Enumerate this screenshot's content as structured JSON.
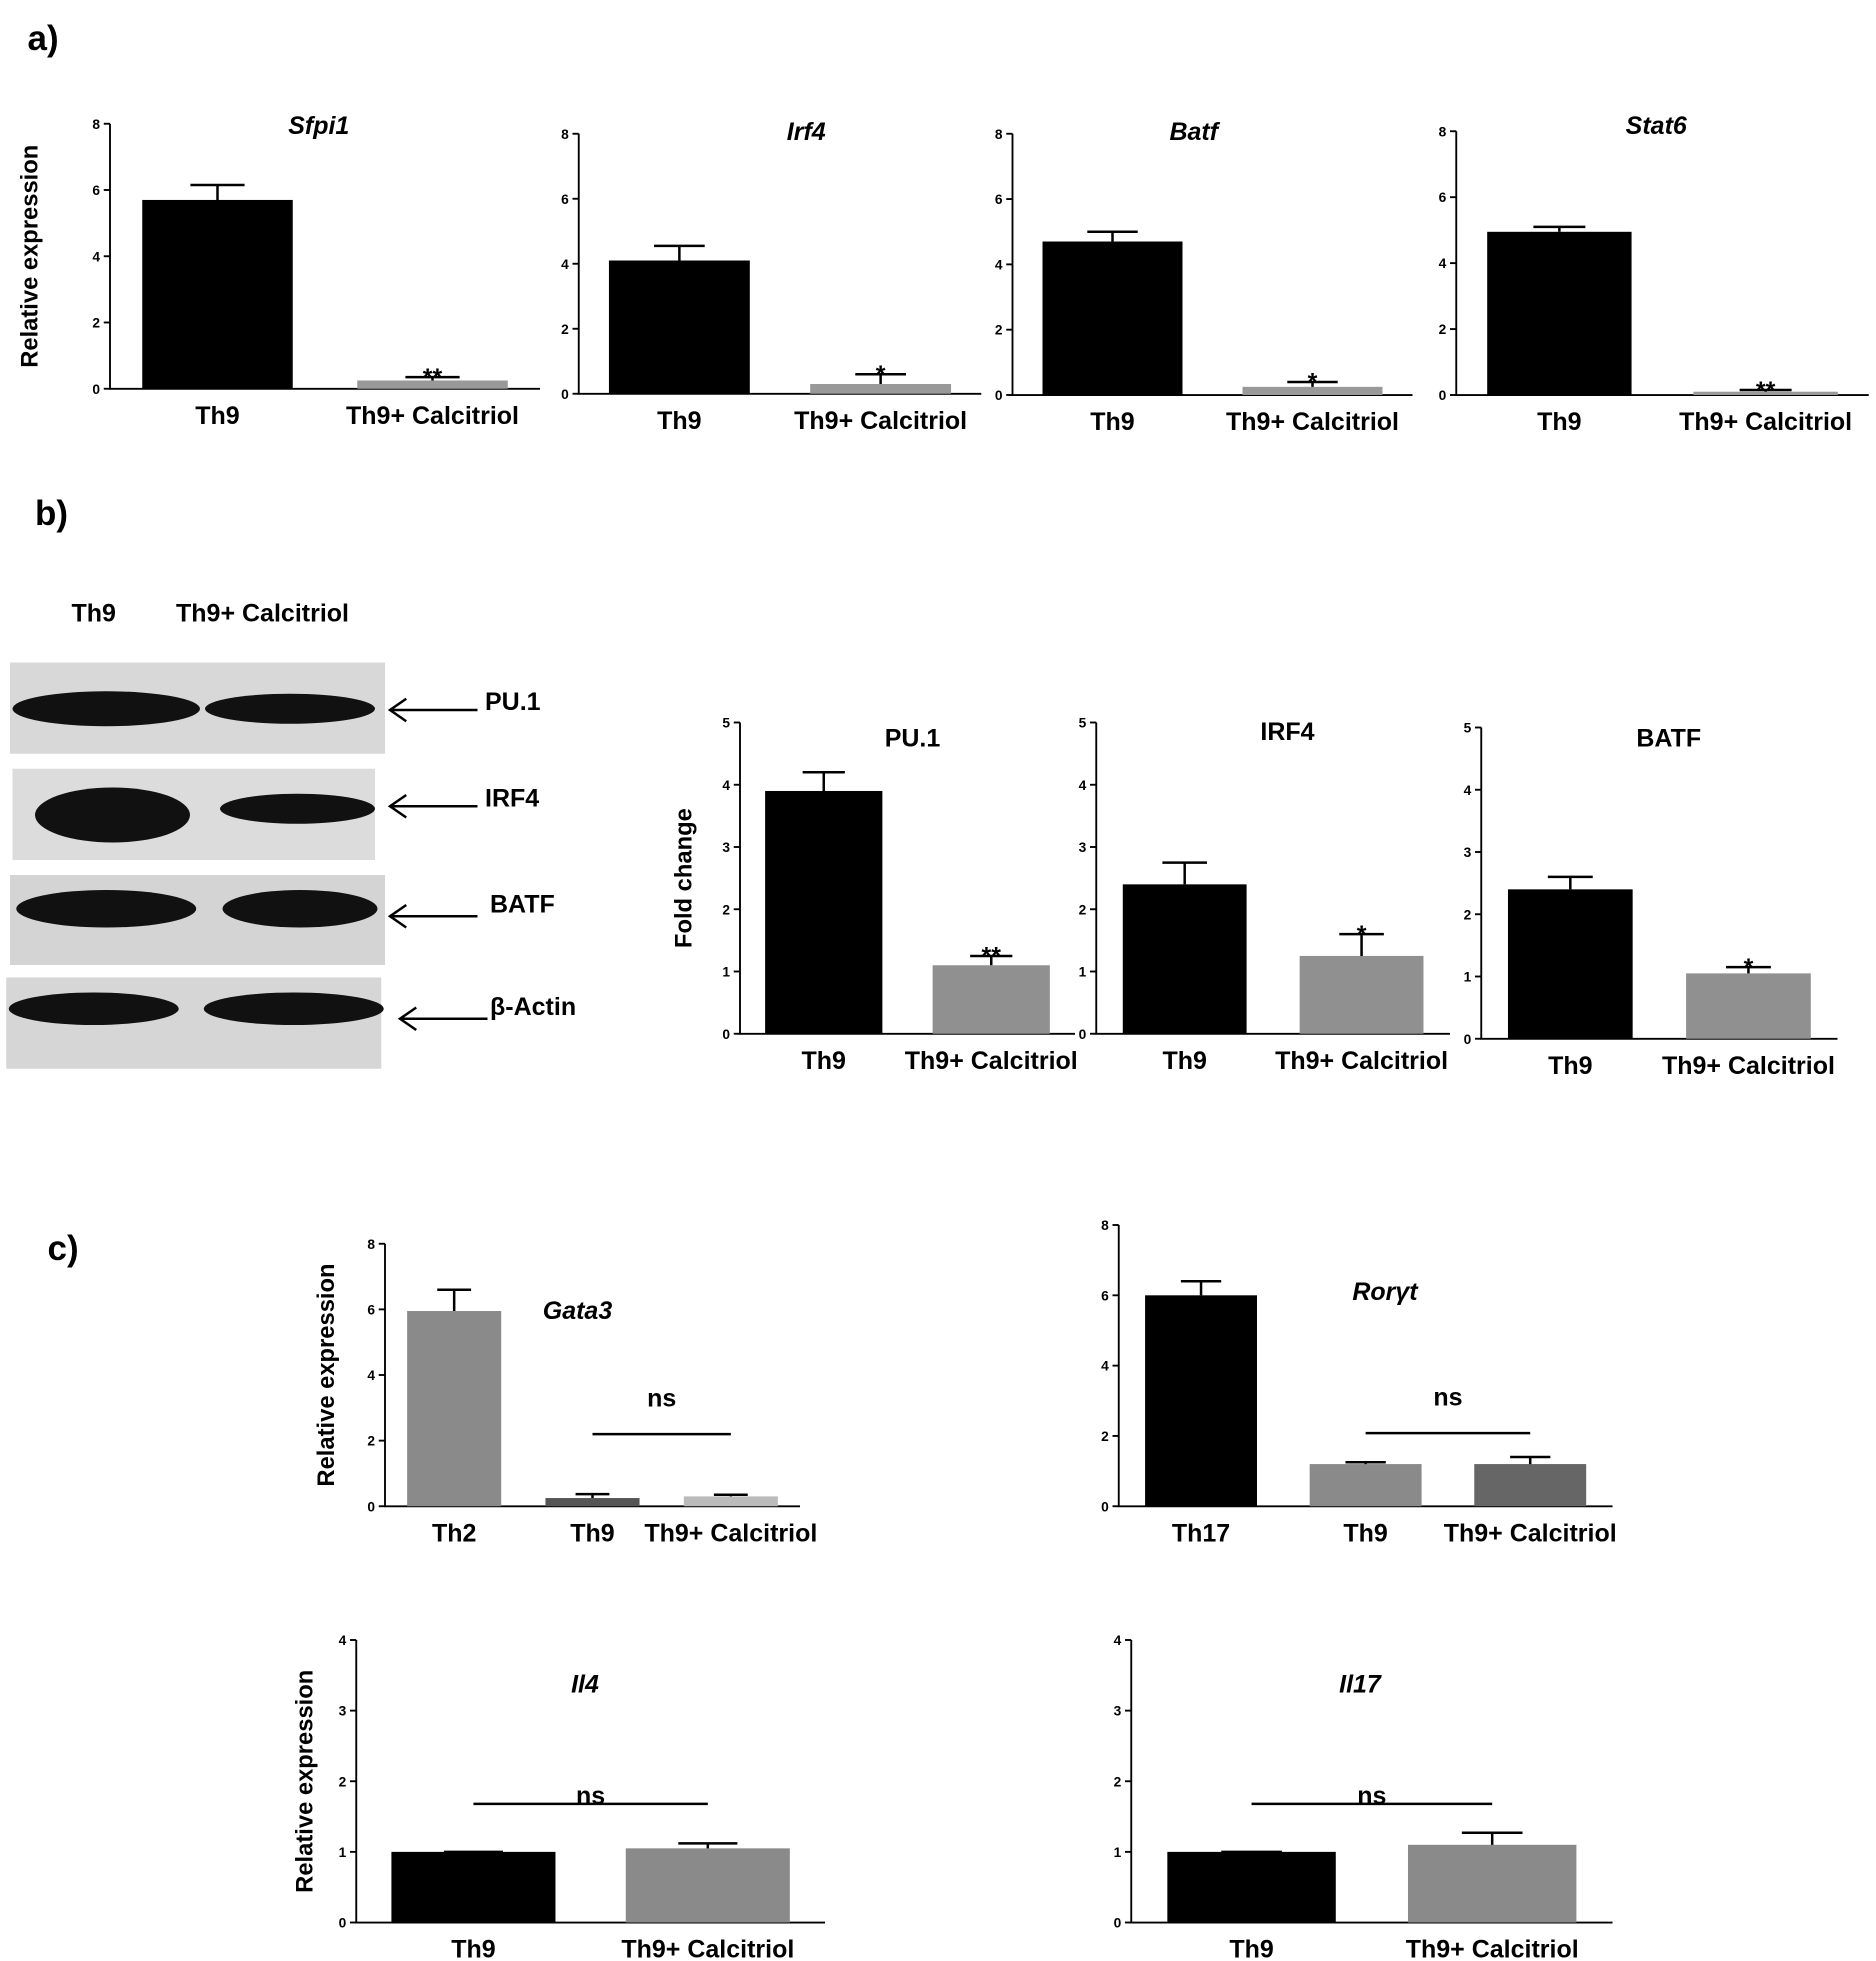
{
  "panel_labels": [
    "a)",
    "b)",
    "c)"
  ],
  "blot": {
    "lanes": [
      "Th9",
      "Th9+ Calcitriol"
    ],
    "proteins": [
      "PU.1",
      "IRF4",
      "BATF",
      "β-Actin"
    ]
  },
  "chart_data": [
    {
      "type": "bar",
      "title": "Sfpi1",
      "ylabel": "Relative expression",
      "categories": [
        "Th9",
        "Th9+ Calcitriol"
      ],
      "values": [
        5.7,
        0.25
      ],
      "errors": [
        0.45,
        0.1
      ],
      "colors": [
        "#000000",
        "#999999"
      ],
      "annotation": "**",
      "ylim": [
        0,
        8
      ],
      "yticks": [
        0,
        2,
        4,
        6,
        8
      ]
    },
    {
      "type": "bar",
      "title": "Irf4",
      "categories": [
        "Th9",
        "Th9+ Calcitriol"
      ],
      "values": [
        4.1,
        0.3
      ],
      "errors": [
        0.45,
        0.3
      ],
      "colors": [
        "#000000",
        "#999999"
      ],
      "annotation": "*",
      "ylim": [
        0,
        8
      ],
      "yticks": [
        0,
        2,
        4,
        6,
        8
      ]
    },
    {
      "type": "bar",
      "title": "Batf",
      "categories": [
        "Th9",
        "Th9+ Calcitriol"
      ],
      "values": [
        4.7,
        0.25
      ],
      "errors": [
        0.3,
        0.15
      ],
      "colors": [
        "#000000",
        "#999999"
      ],
      "annotation": "*",
      "ylim": [
        0,
        8
      ],
      "yticks": [
        0,
        2,
        4,
        6,
        8
      ]
    },
    {
      "type": "bar",
      "title": "Stat6",
      "categories": [
        "Th9",
        "Th9+ Calcitriol"
      ],
      "values": [
        4.95,
        0.1
      ],
      "errors": [
        0.15,
        0.05
      ],
      "colors": [
        "#000000",
        "#999999"
      ],
      "annotation": "**",
      "ylim": [
        0,
        8
      ],
      "yticks": [
        0,
        2,
        4,
        6,
        8
      ]
    },
    {
      "type": "bar",
      "title": "PU.1",
      "ylabel": "Fold change",
      "categories": [
        "Th9",
        "Th9+ Calcitriol"
      ],
      "values": [
        3.9,
        1.1
      ],
      "errors": [
        0.3,
        0.15
      ],
      "colors": [
        "#000000",
        "#909090"
      ],
      "annotation": "**",
      "ylim": [
        0,
        5
      ],
      "yticks": [
        0,
        1,
        2,
        3,
        4,
        5
      ]
    },
    {
      "type": "bar",
      "title": "IRF4",
      "categories": [
        "Th9",
        "Th9+ Calcitriol"
      ],
      "values": [
        2.4,
        1.25
      ],
      "errors": [
        0.35,
        0.35
      ],
      "colors": [
        "#000000",
        "#909090"
      ],
      "annotation": "*",
      "ylim": [
        0,
        5
      ],
      "yticks": [
        0,
        1,
        2,
        3,
        4,
        5
      ]
    },
    {
      "type": "bar",
      "title": "BATF",
      "categories": [
        "Th9",
        "Th9+ Calcitriol"
      ],
      "values": [
        2.4,
        1.05
      ],
      "errors": [
        0.2,
        0.1
      ],
      "colors": [
        "#000000",
        "#909090"
      ],
      "annotation": "*",
      "ylim": [
        0,
        5
      ],
      "yticks": [
        0,
        1,
        2,
        3,
        4,
        5
      ]
    },
    {
      "type": "bar",
      "title": "Gata3",
      "ylabel": "Relative expression",
      "categories": [
        "Th2",
        "Th9",
        "Th9+ Calcitriol"
      ],
      "values": [
        5.95,
        0.25,
        0.3
      ],
      "errors": [
        0.65,
        0.12,
        0.05
      ],
      "colors": [
        "#8a8a8a",
        "#555555",
        "#bbbbbb"
      ],
      "annotation": "ns",
      "bracket": true,
      "ylim": [
        0,
        8
      ],
      "yticks": [
        0,
        2,
        4,
        6,
        8
      ]
    },
    {
      "type": "bar",
      "title": "Rorγt",
      "categories": [
        "Th17",
        "Th9",
        "Th9+ Calcitriol"
      ],
      "values": [
        6.0,
        1.2,
        1.2
      ],
      "errors": [
        0.4,
        0.05,
        0.2
      ],
      "colors": [
        "#000000",
        "#8a8a8a",
        "#666666"
      ],
      "annotation": "ns",
      "bracket": true,
      "ylim": [
        0,
        8
      ],
      "yticks": [
        0,
        2,
        4,
        6,
        8
      ]
    },
    {
      "type": "bar",
      "title": "Il4",
      "ylabel": "Relative expression",
      "categories": [
        "Th9",
        "Th9+ Calcitriol"
      ],
      "values": [
        1.0,
        1.05
      ],
      "errors": [
        0,
        0.07
      ],
      "colors": [
        "#000000",
        "#8a8a8a"
      ],
      "annotation": "ns",
      "bracket": true,
      "ylim": [
        0,
        4
      ],
      "yticks": [
        0,
        1,
        2,
        3,
        4
      ]
    },
    {
      "type": "bar",
      "title": "Il17",
      "categories": [
        "Th9",
        "Th9+ Calcitriol"
      ],
      "values": [
        1.0,
        1.1
      ],
      "errors": [
        0,
        0.17
      ],
      "colors": [
        "#000000",
        "#8a8a8a"
      ],
      "annotation": "ns",
      "bracket": true,
      "ylim": [
        0,
        4
      ],
      "yticks": [
        0,
        1,
        2,
        3,
        4
      ]
    }
  ]
}
